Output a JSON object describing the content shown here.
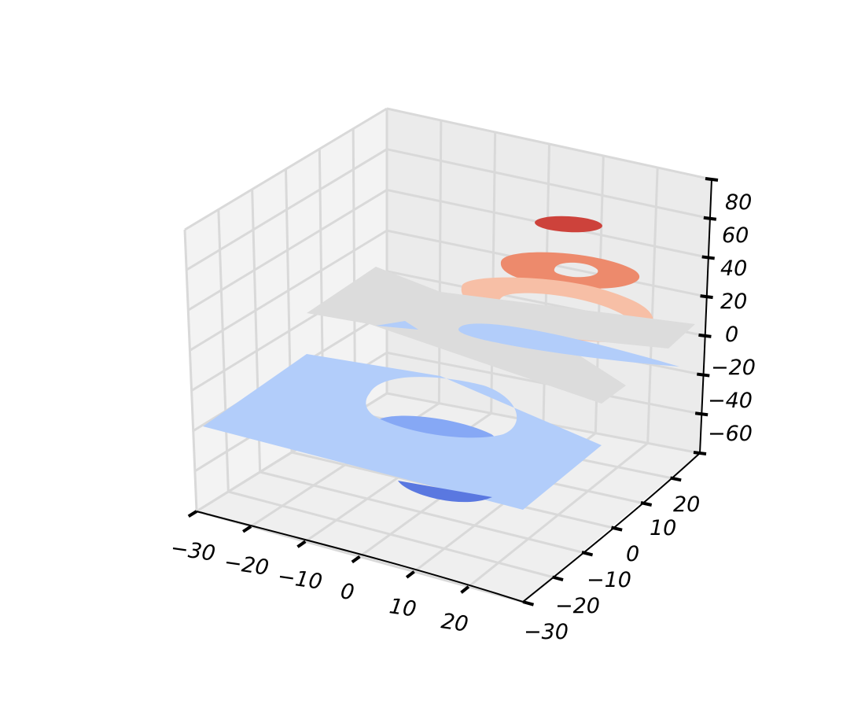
{
  "chart_data": {
    "type": "3d-contour",
    "title": "",
    "xlabel": "",
    "ylabel": "",
    "zlabel": "",
    "grid": true,
    "colormap": "coolwarm",
    "xlim": [
      -30,
      30
    ],
    "ylim": [
      -30,
      30
    ],
    "zlim": [
      -60,
      80
    ],
    "x_ticks": [
      -30,
      -20,
      -10,
      0,
      10,
      20
    ],
    "y_ticks": [
      -30,
      -20,
      -10,
      0,
      10,
      20
    ],
    "z_ticks": [
      -60,
      -40,
      -20,
      0,
      20,
      40,
      60,
      80
    ],
    "x_tick_labels": [
      "−30",
      "−20",
      "−10",
      "0",
      "10",
      "20"
    ],
    "y_tick_labels": [
      "−30",
      "−20",
      "−10",
      "0",
      "10",
      "20"
    ],
    "z_tick_labels": [
      "−60",
      "−40",
      "−20",
      "0",
      "20",
      "40",
      "60",
      "80"
    ],
    "levels": [
      {
        "z": -60,
        "color": "#5a78e0",
        "shape": "ellipse"
      },
      {
        "z": -40,
        "color": "#86a8f5",
        "shape": "ring"
      },
      {
        "z": -20,
        "color": "#b2cdfa",
        "shape": "plane-with-hole"
      },
      {
        "z": 0,
        "color": "#dcdcdc",
        "shape": "saddle"
      },
      {
        "z": 0,
        "color": "#b2cdfa",
        "shape": "lens"
      },
      {
        "z": 20,
        "color": "#f7bfa6",
        "shape": "ring"
      },
      {
        "z": 40,
        "color": "#ed8a6c",
        "shape": "ring"
      },
      {
        "z": 60,
        "color": "#cd423b",
        "shape": "ellipse"
      }
    ]
  }
}
